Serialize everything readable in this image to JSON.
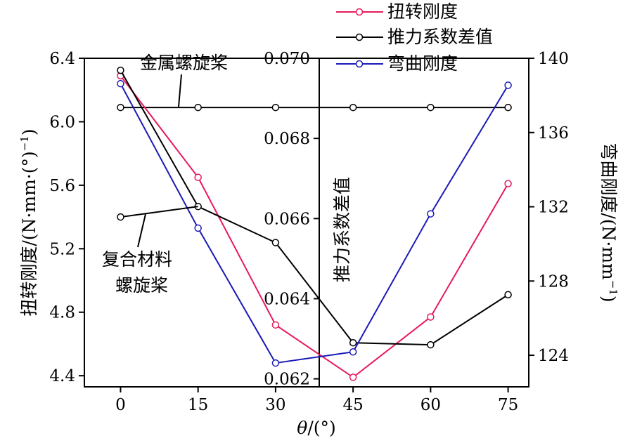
{
  "chart_data": {
    "type": "line",
    "x": [
      0,
      15,
      30,
      45,
      60,
      75
    ],
    "x_ticks": [
      "0",
      "15",
      "30",
      "45",
      "60",
      "75"
    ],
    "xlabel_theta": "θ",
    "xlabel_unit": "/(°)",
    "xlim": [
      -7,
      79
    ],
    "axes": {
      "left": {
        "label_main": "扭转刚度/(N·mm·(°)",
        "label_sup": "−1",
        "label_end": ")",
        "ylim": [
          4.33,
          6.4
        ],
        "ticks": [
          4.4,
          4.8,
          5.2,
          5.6,
          6.0,
          6.4
        ],
        "tick_labels": [
          "4.4",
          "4.8",
          "5.2",
          "5.6",
          "6.0",
          "6.4"
        ]
      },
      "mid": {
        "label": "推力系数差值",
        "ylim": [
          0.0618,
          0.07
        ],
        "ticks": [
          0.062,
          0.064,
          0.066,
          0.068,
          0.07
        ],
        "tick_labels": [
          "0.062",
          "0.064",
          "0.066",
          "0.068",
          "0.070"
        ]
      },
      "right": {
        "label_main": "弯曲刚度/(N·mm",
        "label_sup": "−1",
        "label_end": ")",
        "ylim": [
          122.3,
          140
        ],
        "ticks": [
          124,
          128,
          132,
          136,
          140
        ],
        "tick_labels": [
          "124",
          "128",
          "132",
          "136",
          "140"
        ]
      }
    },
    "series": [
      {
        "name": "扭转刚度",
        "axis": "left",
        "color": "#e8195a",
        "values": [
          6.29,
          5.65,
          4.72,
          4.39,
          4.77,
          5.61
        ]
      },
      {
        "name": "推力系数差值",
        "axis": "mid",
        "color": "#000000",
        "values": [
          0.0697,
          0.0663,
          0.0654,
          0.0629,
          0.06285,
          0.0641
        ]
      },
      {
        "name": "弯曲刚度",
        "axis": "left",
        "color": "#1a1ab8",
        "values": [
          6.24,
          5.33,
          4.48,
          4.55,
          5.42,
          6.23
        ]
      }
    ],
    "metal_reference": {
      "axis": "left",
      "value": 6.09
    },
    "composite_point": {
      "axis": "left",
      "x": 0,
      "value": 5.4
    },
    "annotations": {
      "metal": "金属螺旋桨",
      "composite_line1": "复合材料",
      "composite_line2": "螺旋桨"
    }
  }
}
